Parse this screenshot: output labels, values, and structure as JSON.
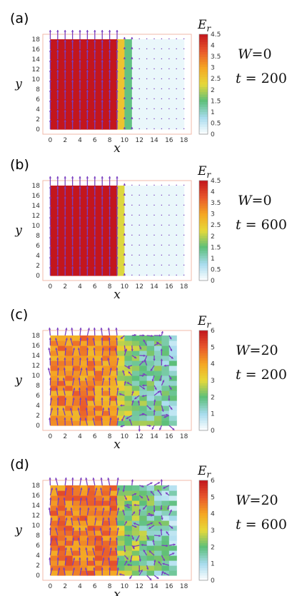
{
  "chart_data": [
    {
      "type": "heatmap",
      "panel_label": "(a)",
      "W": "0",
      "t": "200",
      "colorbar": {
        "label": "E_r",
        "min": 0,
        "max": 4.5,
        "ticks": [
          "0",
          "0.5",
          "1",
          "1.5",
          "2",
          "2.5",
          "3",
          "3.5",
          "4",
          "4.5"
        ]
      },
      "xlabel": "x",
      "ylabel": "y",
      "xlim": [
        -1,
        19
      ],
      "ylim": [
        -1,
        19
      ],
      "xticks": [
        0,
        2,
        4,
        6,
        8,
        10,
        12,
        14,
        16,
        18
      ],
      "yticks": [
        0,
        2,
        4,
        6,
        8,
        10,
        12,
        14,
        16,
        18
      ],
      "hot_region_x": [
        0,
        9
      ],
      "front_x": 11.5,
      "hot_value": 4.5,
      "cold_value": 0.3,
      "arrows": "vertical"
    },
    {
      "type": "heatmap",
      "panel_label": "(b)",
      "W": "0",
      "t": "600",
      "colorbar": {
        "label": "E_r",
        "min": 0,
        "max": 4.5,
        "ticks": [
          "0",
          "0.5",
          "1",
          "1.5",
          "2",
          "2.5",
          "3",
          "3.5",
          "4",
          "4.5"
        ]
      },
      "xlabel": "x",
      "ylabel": "y",
      "xlim": [
        -1,
        19
      ],
      "ylim": [
        -1,
        19
      ],
      "xticks": [
        0,
        2,
        4,
        6,
        8,
        10,
        12,
        14,
        16,
        18
      ],
      "yticks": [
        0,
        2,
        4,
        6,
        8,
        10,
        12,
        14,
        16,
        18
      ],
      "hot_region_x": [
        0,
        9
      ],
      "front_x": 10.5,
      "hot_value": 4.5,
      "cold_value": 0.3,
      "arrows": "vertical"
    },
    {
      "type": "heatmap",
      "panel_label": "(c)",
      "W": "20",
      "t": "200",
      "colorbar": {
        "label": "E_r",
        "min": 0,
        "max": 6,
        "ticks": [
          "0",
          "1",
          "2",
          "3",
          "4",
          "5",
          "6"
        ]
      },
      "xlabel": "x",
      "ylabel": "y",
      "xlim": [
        -1,
        19
      ],
      "ylim": [
        -1,
        19
      ],
      "xticks": [
        0,
        2,
        4,
        6,
        8,
        10,
        12,
        14,
        16,
        18
      ],
      "yticks": [
        0,
        2,
        4,
        6,
        8,
        10,
        12,
        14,
        16,
        18
      ],
      "hot_region_x": [
        0,
        9
      ],
      "front_x": 17,
      "hot_value": 4.3,
      "cold_value": 1.3,
      "arrows": "disordered"
    },
    {
      "type": "heatmap",
      "panel_label": "(d)",
      "W": "20",
      "t": "600",
      "colorbar": {
        "label": "E_r",
        "min": 0,
        "max": 6,
        "ticks": [
          "0",
          "1",
          "2",
          "3",
          "4",
          "5",
          "6"
        ]
      },
      "xlabel": "x",
      "ylabel": "y",
      "xlim": [
        -1,
        19
      ],
      "ylim": [
        -1,
        19
      ],
      "xticks": [
        0,
        2,
        4,
        6,
        8,
        10,
        12,
        14,
        16,
        18
      ],
      "yticks": [
        0,
        2,
        4,
        6,
        8,
        10,
        12,
        14,
        16,
        18
      ],
      "hot_region_x": [
        0,
        9
      ],
      "front_x": 17,
      "hot_value": 4.5,
      "cold_value": 1.2,
      "arrows": "disordered"
    }
  ],
  "colors": {
    "arrow": "#7a3fc0",
    "frame": "#f2b8a8",
    "scale": [
      "#ffffff",
      "#a8dcee",
      "#5cbf7a",
      "#e6d93a",
      "#f5a623",
      "#e8572b",
      "#c3161d"
    ]
  }
}
